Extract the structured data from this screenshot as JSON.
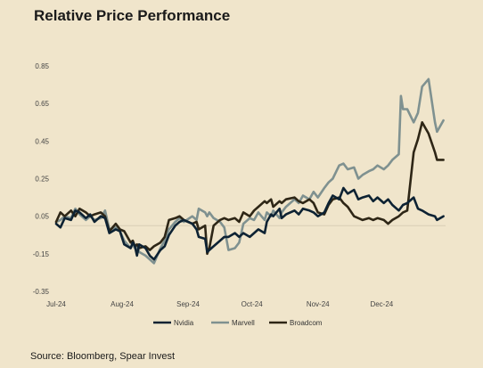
{
  "title": "Relative Price Performance",
  "source": "Source: Bloomberg, Spear Invest",
  "colors": {
    "background": "#f0e5cb",
    "nvidia": "#0d2233",
    "marvell": "#7f9190",
    "broadcom": "#2e2616",
    "zero_line": "#d8cdb5"
  },
  "chart_data": {
    "type": "line",
    "title": "Relative Price Performance",
    "xlabel": "",
    "ylabel": "",
    "x_ticks": [
      "Jul-24",
      "Aug-24",
      "Sep-24",
      "Oct-24",
      "Nov-24",
      "Dec-24"
    ],
    "y_ticks": [
      "0.85",
      "0.65",
      "0.45",
      "0.25",
      "0.05",
      "-0.15",
      "-0.35"
    ],
    "ylim": [
      -0.35,
      0.85
    ],
    "xlim": [
      "2024-07-01",
      "2024-12-31"
    ],
    "grid": false,
    "legend": "bottom",
    "series": [
      {
        "name": "Nvidia",
        "color": "#0d2233",
        "points": [
          [
            "2024-07-01",
            0.01
          ],
          [
            "2024-07-03",
            -0.01
          ],
          [
            "2024-07-05",
            0.04
          ],
          [
            "2024-07-08",
            0.03
          ],
          [
            "2024-07-10",
            0.08
          ],
          [
            "2024-07-12",
            0.07
          ],
          [
            "2024-07-15",
            0.04
          ],
          [
            "2024-07-17",
            0.06
          ],
          [
            "2024-07-19",
            0.02
          ],
          [
            "2024-07-22",
            0.05
          ],
          [
            "2024-07-24",
            0.04
          ],
          [
            "2024-07-26",
            -0.04
          ],
          [
            "2024-07-29",
            -0.02
          ],
          [
            "2024-07-31",
            -0.03
          ],
          [
            "2024-08-02",
            -0.1
          ],
          [
            "2024-08-05",
            -0.12
          ],
          [
            "2024-08-06",
            -0.09
          ],
          [
            "2024-08-07",
            -0.11
          ],
          [
            "2024-08-08",
            -0.16
          ],
          [
            "2024-08-09",
            -0.1
          ],
          [
            "2024-08-12",
            -0.12
          ],
          [
            "2024-08-14",
            -0.16
          ],
          [
            "2024-08-16",
            -0.18
          ],
          [
            "2024-08-19",
            -0.13
          ],
          [
            "2024-08-21",
            -0.11
          ],
          [
            "2024-08-23",
            -0.05
          ],
          [
            "2024-08-26",
            0.0
          ],
          [
            "2024-08-28",
            0.02
          ],
          [
            "2024-08-30",
            0.03
          ],
          [
            "2024-09-03",
            0.01
          ],
          [
            "2024-09-05",
            -0.02
          ],
          [
            "2024-09-06",
            -0.06
          ],
          [
            "2024-09-09",
            -0.07
          ],
          [
            "2024-09-10",
            -0.14
          ],
          [
            "2024-09-11",
            -0.13
          ],
          [
            "2024-09-13",
            -0.11
          ],
          [
            "2024-09-16",
            -0.08
          ],
          [
            "2024-09-18",
            -0.06
          ],
          [
            "2024-09-20",
            -0.06
          ],
          [
            "2024-09-23",
            -0.04
          ],
          [
            "2024-09-25",
            -0.06
          ],
          [
            "2024-09-27",
            -0.04
          ],
          [
            "2024-09-30",
            -0.06
          ],
          [
            "2024-10-02",
            -0.04
          ],
          [
            "2024-10-04",
            -0.02
          ],
          [
            "2024-10-07",
            -0.04
          ],
          [
            "2024-10-08",
            0.02
          ],
          [
            "2024-10-10",
            0.06
          ],
          [
            "2024-10-11",
            0.05
          ],
          [
            "2024-10-14",
            0.09
          ],
          [
            "2024-10-15",
            0.04
          ],
          [
            "2024-10-17",
            0.06
          ],
          [
            "2024-10-21",
            0.08
          ],
          [
            "2024-10-23",
            0.06
          ],
          [
            "2024-10-25",
            0.09
          ],
          [
            "2024-10-28",
            0.08
          ],
          [
            "2024-10-30",
            0.07
          ],
          [
            "2024-11-01",
            0.05
          ],
          [
            "2024-11-04",
            0.07
          ],
          [
            "2024-11-06",
            0.12
          ],
          [
            "2024-11-08",
            0.16
          ],
          [
            "2024-11-11",
            0.14
          ],
          [
            "2024-11-13",
            0.2
          ],
          [
            "2024-11-15",
            0.17
          ],
          [
            "2024-11-18",
            0.19
          ],
          [
            "2024-11-20",
            0.14
          ],
          [
            "2024-11-22",
            0.15
          ],
          [
            "2024-11-25",
            0.16
          ],
          [
            "2024-11-27",
            0.13
          ],
          [
            "2024-11-29",
            0.15
          ],
          [
            "2024-12-02",
            0.12
          ],
          [
            "2024-12-04",
            0.14
          ],
          [
            "2024-12-06",
            0.11
          ],
          [
            "2024-12-09",
            0.08
          ],
          [
            "2024-12-11",
            0.11
          ],
          [
            "2024-12-13",
            0.12
          ],
          [
            "2024-12-16",
            0.15
          ],
          [
            "2024-12-18",
            0.09
          ],
          [
            "2024-12-20",
            0.08
          ],
          [
            "2024-12-23",
            0.06
          ],
          [
            "2024-12-26",
            0.05
          ],
          [
            "2024-12-27",
            0.03
          ],
          [
            "2024-12-30",
            0.05
          ]
        ]
      },
      {
        "name": "Marvell",
        "color": "#7f9190",
        "points": [
          [
            "2024-07-01",
            0.02
          ],
          [
            "2024-07-03",
            0.03
          ],
          [
            "2024-07-05",
            0.05
          ],
          [
            "2024-07-08",
            0.04
          ],
          [
            "2024-07-10",
            0.09
          ],
          [
            "2024-07-12",
            0.06
          ],
          [
            "2024-07-15",
            0.03
          ],
          [
            "2024-07-17",
            0.05
          ],
          [
            "2024-07-19",
            0.03
          ],
          [
            "2024-07-22",
            0.04
          ],
          [
            "2024-07-24",
            0.08
          ],
          [
            "2024-07-26",
            -0.02
          ],
          [
            "2024-07-29",
            -0.01
          ],
          [
            "2024-07-31",
            -0.03
          ],
          [
            "2024-08-02",
            -0.08
          ],
          [
            "2024-08-05",
            -0.12
          ],
          [
            "2024-08-06",
            -0.1
          ],
          [
            "2024-08-07",
            -0.12
          ],
          [
            "2024-08-08",
            -0.11
          ],
          [
            "2024-08-09",
            -0.14
          ],
          [
            "2024-08-12",
            -0.16
          ],
          [
            "2024-08-14",
            -0.18
          ],
          [
            "2024-08-16",
            -0.2
          ],
          [
            "2024-08-19",
            -0.12
          ],
          [
            "2024-08-21",
            -0.08
          ],
          [
            "2024-08-23",
            -0.02
          ],
          [
            "2024-08-26",
            0.02
          ],
          [
            "2024-08-28",
            0.04
          ],
          [
            "2024-08-30",
            0.02
          ],
          [
            "2024-09-03",
            0.05
          ],
          [
            "2024-09-05",
            0.03
          ],
          [
            "2024-09-06",
            0.09
          ],
          [
            "2024-09-09",
            0.07
          ],
          [
            "2024-09-10",
            0.05
          ],
          [
            "2024-09-11",
            0.07
          ],
          [
            "2024-09-13",
            0.04
          ],
          [
            "2024-09-16",
            0.02
          ],
          [
            "2024-09-18",
            -0.01
          ],
          [
            "2024-09-20",
            -0.13
          ],
          [
            "2024-09-23",
            -0.12
          ],
          [
            "2024-09-25",
            -0.09
          ],
          [
            "2024-09-27",
            0.01
          ],
          [
            "2024-09-30",
            0.04
          ],
          [
            "2024-10-02",
            0.03
          ],
          [
            "2024-10-04",
            0.07
          ],
          [
            "2024-10-07",
            0.03
          ],
          [
            "2024-10-08",
            0.07
          ],
          [
            "2024-10-10",
            0.05
          ],
          [
            "2024-10-11",
            0.08
          ],
          [
            "2024-10-14",
            0.04
          ],
          [
            "2024-10-15",
            0.07
          ],
          [
            "2024-10-17",
            0.1
          ],
          [
            "2024-10-21",
            0.14
          ],
          [
            "2024-10-23",
            0.12
          ],
          [
            "2024-10-25",
            0.16
          ],
          [
            "2024-10-28",
            0.14
          ],
          [
            "2024-10-30",
            0.18
          ],
          [
            "2024-11-01",
            0.15
          ],
          [
            "2024-11-04",
            0.2
          ],
          [
            "2024-11-06",
            0.23
          ],
          [
            "2024-11-08",
            0.25
          ],
          [
            "2024-11-11",
            0.32
          ],
          [
            "2024-11-13",
            0.33
          ],
          [
            "2024-11-15",
            0.3
          ],
          [
            "2024-11-18",
            0.31
          ],
          [
            "2024-11-20",
            0.25
          ],
          [
            "2024-11-22",
            0.27
          ],
          [
            "2024-11-25",
            0.29
          ],
          [
            "2024-11-27",
            0.3
          ],
          [
            "2024-11-29",
            0.32
          ],
          [
            "2024-12-02",
            0.3
          ],
          [
            "2024-12-04",
            0.32
          ],
          [
            "2024-12-06",
            0.35
          ],
          [
            "2024-12-09",
            0.38
          ],
          [
            "2024-12-10",
            0.69
          ],
          [
            "2024-12-11",
            0.62
          ],
          [
            "2024-12-13",
            0.62
          ],
          [
            "2024-12-16",
            0.55
          ],
          [
            "2024-12-18",
            0.6
          ],
          [
            "2024-12-20",
            0.74
          ],
          [
            "2024-12-23",
            0.78
          ],
          [
            "2024-12-26",
            0.55
          ],
          [
            "2024-12-27",
            0.5
          ],
          [
            "2024-12-30",
            0.56
          ]
        ]
      },
      {
        "name": "Broadcom",
        "color": "#2e2616",
        "points": [
          [
            "2024-07-01",
            0.02
          ],
          [
            "2024-07-03",
            0.07
          ],
          [
            "2024-07-05",
            0.05
          ],
          [
            "2024-07-08",
            0.08
          ],
          [
            "2024-07-10",
            0.05
          ],
          [
            "2024-07-12",
            0.09
          ],
          [
            "2024-07-15",
            0.07
          ],
          [
            "2024-07-17",
            0.05
          ],
          [
            "2024-07-19",
            0.06
          ],
          [
            "2024-07-22",
            0.07
          ],
          [
            "2024-07-24",
            0.05
          ],
          [
            "2024-07-26",
            -0.03
          ],
          [
            "2024-07-29",
            0.01
          ],
          [
            "2024-07-31",
            -0.02
          ],
          [
            "2024-08-02",
            -0.03
          ],
          [
            "2024-08-05",
            -0.09
          ],
          [
            "2024-08-06",
            -0.08
          ],
          [
            "2024-08-07",
            -0.11
          ],
          [
            "2024-08-08",
            -0.1
          ],
          [
            "2024-08-09",
            -0.12
          ],
          [
            "2024-08-12",
            -0.11
          ],
          [
            "2024-08-14",
            -0.13
          ],
          [
            "2024-08-16",
            -0.11
          ],
          [
            "2024-08-19",
            -0.09
          ],
          [
            "2024-08-21",
            -0.06
          ],
          [
            "2024-08-23",
            0.03
          ],
          [
            "2024-08-26",
            0.04
          ],
          [
            "2024-08-28",
            0.05
          ],
          [
            "2024-08-30",
            0.03
          ],
          [
            "2024-09-03",
            0.01
          ],
          [
            "2024-09-05",
            0.02
          ],
          [
            "2024-09-06",
            -0.02
          ],
          [
            "2024-09-09",
            0.0
          ],
          [
            "2024-09-10",
            -0.15
          ],
          [
            "2024-09-11",
            -0.12
          ],
          [
            "2024-09-13",
            0.0
          ],
          [
            "2024-09-16",
            0.03
          ],
          [
            "2024-09-18",
            0.04
          ],
          [
            "2024-09-20",
            0.03
          ],
          [
            "2024-09-23",
            0.04
          ],
          [
            "2024-09-25",
            0.02
          ],
          [
            "2024-09-27",
            0.07
          ],
          [
            "2024-09-30",
            0.05
          ],
          [
            "2024-10-02",
            0.08
          ],
          [
            "2024-10-04",
            0.1
          ],
          [
            "2024-10-07",
            0.13
          ],
          [
            "2024-10-08",
            0.12
          ],
          [
            "2024-10-10",
            0.14
          ],
          [
            "2024-10-11",
            0.1
          ],
          [
            "2024-10-14",
            0.13
          ],
          [
            "2024-10-15",
            0.12
          ],
          [
            "2024-10-17",
            0.14
          ],
          [
            "2024-10-21",
            0.15
          ],
          [
            "2024-10-23",
            0.13
          ],
          [
            "2024-10-25",
            0.12
          ],
          [
            "2024-10-28",
            0.14
          ],
          [
            "2024-10-30",
            0.12
          ],
          [
            "2024-11-01",
            0.07
          ],
          [
            "2024-11-04",
            0.06
          ],
          [
            "2024-11-06",
            0.11
          ],
          [
            "2024-11-08",
            0.14
          ],
          [
            "2024-11-11",
            0.15
          ],
          [
            "2024-11-13",
            0.12
          ],
          [
            "2024-11-15",
            0.1
          ],
          [
            "2024-11-18",
            0.05
          ],
          [
            "2024-11-20",
            0.04
          ],
          [
            "2024-11-22",
            0.03
          ],
          [
            "2024-11-25",
            0.04
          ],
          [
            "2024-11-27",
            0.03
          ],
          [
            "2024-11-29",
            0.04
          ],
          [
            "2024-12-02",
            0.03
          ],
          [
            "2024-12-04",
            0.01
          ],
          [
            "2024-12-06",
            0.03
          ],
          [
            "2024-12-09",
            0.05
          ],
          [
            "2024-12-11",
            0.07
          ],
          [
            "2024-12-13",
            0.08
          ],
          [
            "2024-12-16",
            0.39
          ],
          [
            "2024-12-18",
            0.46
          ],
          [
            "2024-12-20",
            0.55
          ],
          [
            "2024-12-23",
            0.49
          ],
          [
            "2024-12-26",
            0.39
          ],
          [
            "2024-12-27",
            0.35
          ],
          [
            "2024-12-30",
            0.35
          ]
        ]
      }
    ]
  }
}
